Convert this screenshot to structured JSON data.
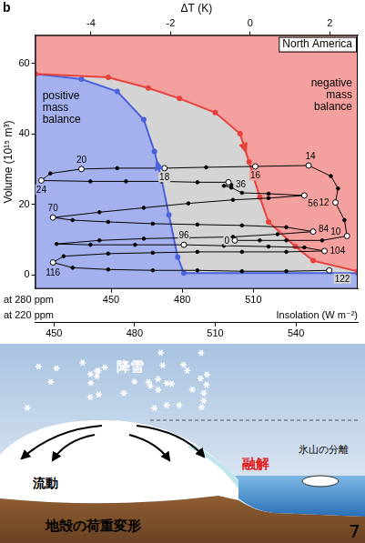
{
  "chart_data": {
    "type": "line",
    "panel": "b",
    "title": "North America",
    "ylabel": "Volume (10¹⁵ m³)",
    "ylim": [
      -4,
      68
    ],
    "yticks": [
      0,
      20,
      40,
      60
    ],
    "xlabel": "Insolation (W m⁻²)",
    "x_axes": [
      {
        "label": "at 280 ppm",
        "xlim": [
          418,
          554
        ],
        "xticks": [
          450,
          480,
          510
        ]
      },
      {
        "label": "at 220 ppm",
        "xlim": [
          443,
          563
        ],
        "xticks": [
          450,
          480,
          510,
          540
        ]
      },
      {
        "label": "ΔT (K)",
        "xlim": [
          -5.4,
          2.7
        ],
        "xticks": [
          -4,
          -2,
          0,
          2
        ]
      }
    ],
    "grid": false,
    "regions": [
      {
        "label": "negative mass balance",
        "color": "#e8413c",
        "x": [
          418,
          448.8,
          465.7,
          478.9,
          493.9,
          504.4,
          508.2,
          512.7,
          516.4,
          527.7,
          535.2,
          554
        ],
        "values": [
          57,
          56,
          53,
          50,
          46,
          40,
          32,
          22,
          15,
          8,
          4,
          1
        ]
      },
      {
        "label": "positive mass balance",
        "color": "#4b62dc",
        "x": [
          418,
          437.5,
          452.6,
          463.8,
          468.3,
          471.3,
          474.4,
          478.1,
          480.7,
          554
        ],
        "values": [
          57,
          55.5,
          52,
          44,
          35,
          27,
          17,
          5,
          0.5,
          0.5
        ]
      }
    ],
    "series": [
      {
        "color": "#000000",
        "marker": "circle",
        "x": [
          542.0,
          523.9,
          505.2,
          486.4,
          467.6,
          448.8,
          433.8,
          425.5,
          430.0,
          448.8,
          467.6,
          486.4,
          505.2,
          523.9,
          540.0,
          531.5,
          516.4,
          497.6,
          480.7,
          460.1,
          441.3,
          427.0,
          445.1,
          463.8,
          482.6,
          501.4,
          520.2,
          535.2,
          523.9,
          505.2,
          486.4,
          467.6,
          448.8,
          433.8,
          425.5,
          445.1,
          463.8,
          482.6,
          501.4,
          516.4,
          531.5,
          516.4,
          505.2,
          500.7,
          497.6,
          500.7,
          499.5,
          486.4,
          471.3,
          456.3,
          441.3,
          420.6,
          424.4,
          437.5,
          452.6,
          472.5,
          490.1,
          510.8,
          533.3,
          542.7,
          545.7,
          544.6,
          548.4,
          549.5,
          539.0,
          523.9,
          512.7,
          502.2
        ],
        "values": [
          1.25,
          1.0,
          1.0,
          1.25,
          1.25,
          1.5,
          2.0,
          3.5,
          5.25,
          6.0,
          6.25,
          6.5,
          6.5,
          6.5,
          6.75,
          7.75,
          8.0,
          8.25,
          8.5,
          8.5,
          8.5,
          8.75,
          9.75,
          10.25,
          10.5,
          10.75,
          11.5,
          12.25,
          13.5,
          14.0,
          14.25,
          14.5,
          15.0,
          15.5,
          16.25,
          17.75,
          19.0,
          20.25,
          21.25,
          21.75,
          22.5,
          23.0,
          23.25,
          24.75,
          25.25,
          25.5,
          26.25,
          26.25,
          26.5,
          26.5,
          26.5,
          26.75,
          28.75,
          30.0,
          30.25,
          30.25,
          30.5,
          30.75,
          31.0,
          28.0,
          24.5,
          20.5,
          15.5,
          11.0,
          9.75,
          9.75,
          9.75,
          9.75
        ],
        "point_labels": [
          122,
          null,
          null,
          null,
          null,
          null,
          null,
          116,
          null,
          null,
          null,
          null,
          null,
          null,
          104,
          null,
          null,
          null,
          96,
          null,
          null,
          null,
          null,
          null,
          null,
          null,
          null,
          84,
          null,
          null,
          null,
          null,
          null,
          null,
          70,
          null,
          null,
          null,
          null,
          null,
          56,
          null,
          null,
          null,
          null,
          null,
          36,
          null,
          null,
          null,
          null,
          24,
          null,
          20,
          null,
          18,
          null,
          16,
          14,
          null,
          null,
          12,
          null,
          10,
          null,
          null,
          null,
          0
        ]
      }
    ]
  },
  "diagram": {
    "snowfall": "降雪",
    "flow": "流動",
    "melting": "融解",
    "calving": "氷山の分離",
    "crustal_deformation": "地殻の荷重変形",
    "page_number": 7
  }
}
